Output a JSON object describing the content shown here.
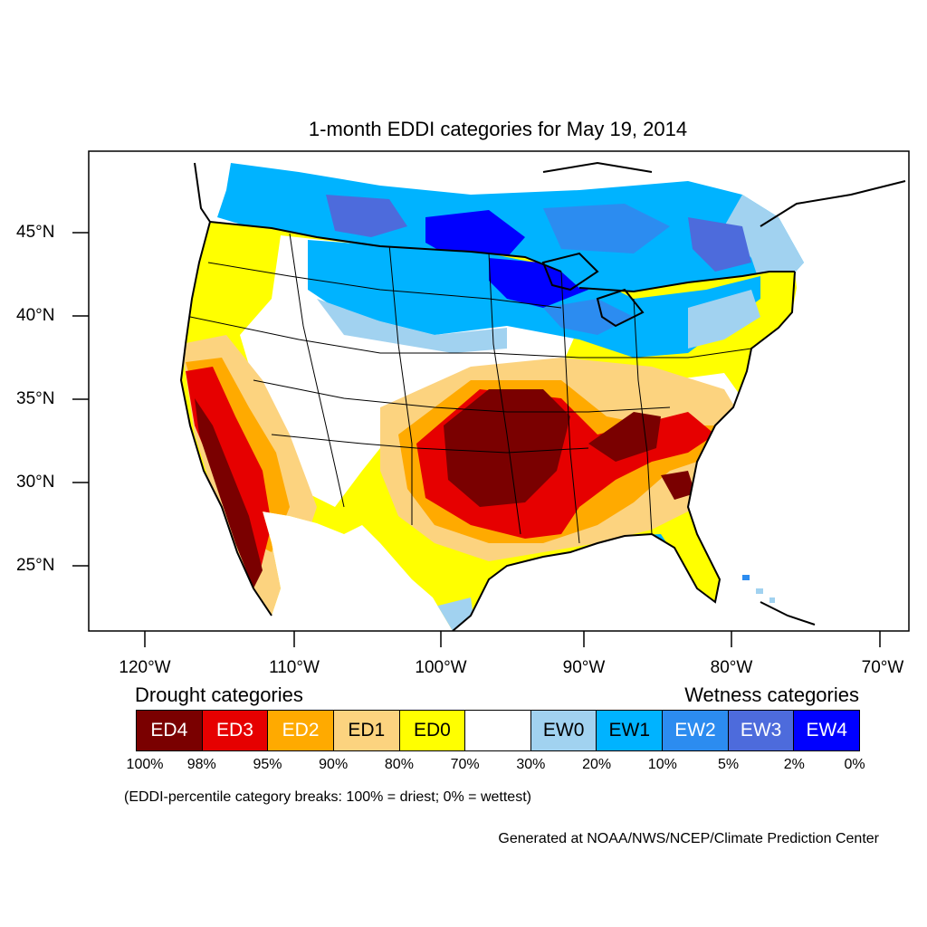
{
  "title": "1-month EDDI categories for May 19, 2014",
  "lat_ticks": [
    "45°N",
    "40°N",
    "35°N",
    "30°N",
    "25°N"
  ],
  "lon_ticks": [
    "120°W",
    "110°W",
    "100°W",
    "90°W",
    "80°W",
    "70°W"
  ],
  "legend": {
    "drought_heading": "Drought categories",
    "wetness_heading": "Wetness categories",
    "categories": [
      {
        "label": "ED4",
        "color": "#7a0000"
      },
      {
        "label": "ED3",
        "color": "#e60000"
      },
      {
        "label": "ED2",
        "color": "#ffaa00"
      },
      {
        "label": "ED1",
        "color": "#fcd37f"
      },
      {
        "label": "ED0",
        "color": "#ffff00"
      },
      {
        "label": "",
        "color": "#ffffff"
      },
      {
        "label": "EW0",
        "color": "#a1d2f0"
      },
      {
        "label": "EW1",
        "color": "#00b3ff"
      },
      {
        "label": "EW2",
        "color": "#2c8cf0"
      },
      {
        "label": "EW3",
        "color": "#4d6bdc"
      },
      {
        "label": "EW4",
        "color": "#0000ff"
      }
    ],
    "breaks": [
      "100%",
      "98%",
      "95%",
      "90%",
      "80%",
      "70%",
      "30%",
      "20%",
      "10%",
      "5%",
      "2%",
      "0%"
    ]
  },
  "note": "(EDDI-percentile category breaks: 100% = driest; 0% = wettest)",
  "credit": "Generated at NOAA/NWS/NCEP/Climate Prediction Center"
}
